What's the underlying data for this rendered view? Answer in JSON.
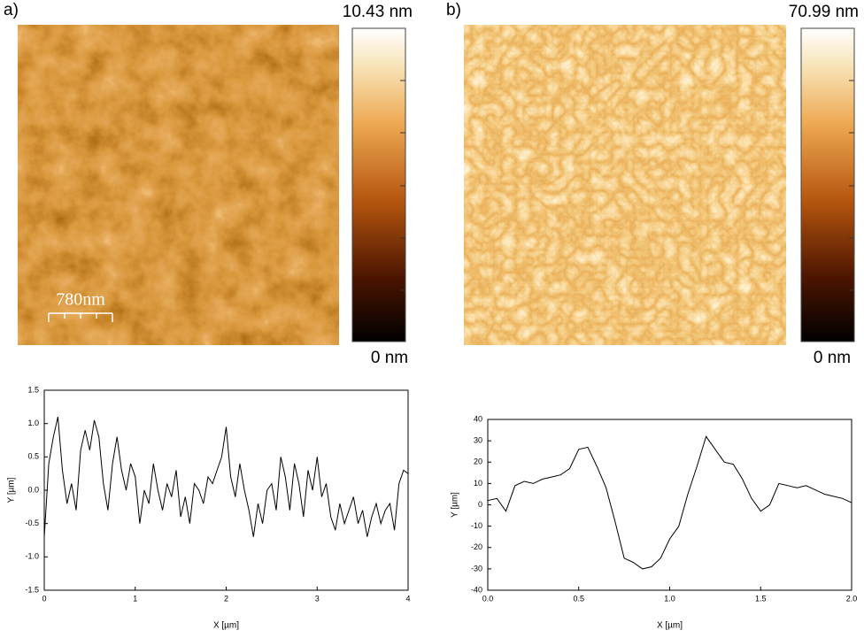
{
  "panels": [
    {
      "label": "a)",
      "colorbar_max": "10.43 nm",
      "colorbar_min": "0 nm",
      "scale_bar": "780nm"
    },
    {
      "label": "b)",
      "colorbar_max": "70.99 nm",
      "colorbar_min": "0 nm"
    }
  ],
  "chart_data": [
    {
      "type": "line",
      "xlabel": "X [µm]",
      "ylabel": "Y [µm]",
      "x": [
        0,
        0.05,
        0.1,
        0.15,
        0.2,
        0.25,
        0.3,
        0.35,
        0.4,
        0.45,
        0.5,
        0.55,
        0.6,
        0.65,
        0.7,
        0.75,
        0.8,
        0.85,
        0.9,
        0.95,
        1,
        1.05,
        1.1,
        1.15,
        1.2,
        1.25,
        1.3,
        1.35,
        1.4,
        1.45,
        1.5,
        1.55,
        1.6,
        1.65,
        1.7,
        1.75,
        1.8,
        1.85,
        1.9,
        1.95,
        2,
        2.05,
        2.1,
        2.15,
        2.2,
        2.25,
        2.3,
        2.35,
        2.4,
        2.45,
        2.5,
        2.55,
        2.6,
        2.65,
        2.7,
        2.75,
        2.8,
        2.85,
        2.9,
        2.95,
        3,
        3.05,
        3.1,
        3.15,
        3.2,
        3.25,
        3.3,
        3.35,
        3.4,
        3.45,
        3.5,
        3.55,
        3.6,
        3.65,
        3.7,
        3.75,
        3.8,
        3.85,
        3.9,
        3.95,
        4
      ],
      "series": [
        {
          "color": "#000000",
          "values": [
            -0.7,
            0.4,
            0.8,
            1.1,
            0.3,
            -0.2,
            0.1,
            -0.3,
            0.6,
            0.9,
            0.6,
            1.05,
            0.8,
            0.1,
            -0.3,
            0.4,
            0.8,
            0.3,
            0,
            0.4,
            0.2,
            -0.5,
            0,
            -0.2,
            0.4,
            0,
            -0.3,
            0.1,
            -0.1,
            0.3,
            -0.4,
            -0.1,
            -0.5,
            0.1,
            0,
            -0.2,
            0.2,
            0.1,
            0.3,
            0.5,
            0.95,
            0.2,
            -0.1,
            0.4,
            0,
            -0.3,
            -0.7,
            -0.2,
            -0.5,
            0,
            0.1,
            -0.3,
            0.5,
            0.2,
            -0.3,
            0.4,
            0.1,
            -0.4,
            0.3,
            0,
            0.5,
            -0.1,
            0.1,
            -0.4,
            -0.6,
            -0.2,
            -0.5,
            -0.3,
            -0.1,
            -0.5,
            -0.3,
            -0.7,
            -0.4,
            -0.2,
            -0.5,
            -0.3,
            -0.2,
            -0.6,
            0.1,
            0.3,
            0.25
          ]
        }
      ],
      "xlim": [
        0,
        4
      ],
      "ylim": [
        -1.5,
        1.5
      ],
      "xticks": [
        0,
        1,
        2,
        3,
        4
      ],
      "yticks": [
        -1.5,
        {
          "value": -1,
          "label": "-1.0"
        },
        -0.5,
        {
          "value": 0,
          "label": "0.0"
        },
        0.5,
        {
          "value": 1,
          "label": "1.0"
        },
        1.5
      ]
    },
    {
      "type": "line",
      "xlabel": "X [µm]",
      "ylabel": "Y [µm]",
      "x": [
        0,
        0.05,
        0.1,
        0.15,
        0.2,
        0.25,
        0.3,
        0.35,
        0.4,
        0.45,
        0.5,
        0.55,
        0.6,
        0.65,
        0.7,
        0.75,
        0.8,
        0.85,
        0.9,
        0.95,
        1,
        1.05,
        1.1,
        1.15,
        1.2,
        1.25,
        1.3,
        1.35,
        1.4,
        1.45,
        1.5,
        1.55,
        1.6,
        1.65,
        1.7,
        1.75,
        1.8,
        1.85,
        1.9,
        1.95,
        2
      ],
      "series": [
        {
          "color": "#000000",
          "values": [
            2,
            3,
            -3,
            9,
            11,
            10,
            12,
            13,
            14,
            17,
            26,
            27,
            18,
            8,
            -8,
            -25,
            -27,
            -30,
            -29,
            -25,
            -16,
            -10,
            5,
            18,
            32,
            26,
            20,
            19,
            12,
            3,
            -3,
            0,
            10,
            9,
            8,
            9,
            7,
            5,
            4,
            3,
            1
          ]
        }
      ],
      "xlim": [
        0,
        2
      ],
      "ylim": [
        -40,
        40
      ],
      "xticks": [
        {
          "value": 0,
          "label": "0.0"
        },
        0.5,
        {
          "value": 1,
          "label": "1.0"
        },
        1.5,
        {
          "value": 2,
          "label": "2.0"
        }
      ],
      "yticks": [
        -40,
        -30,
        -20,
        -10,
        0,
        10,
        20,
        30,
        40
      ]
    }
  ]
}
